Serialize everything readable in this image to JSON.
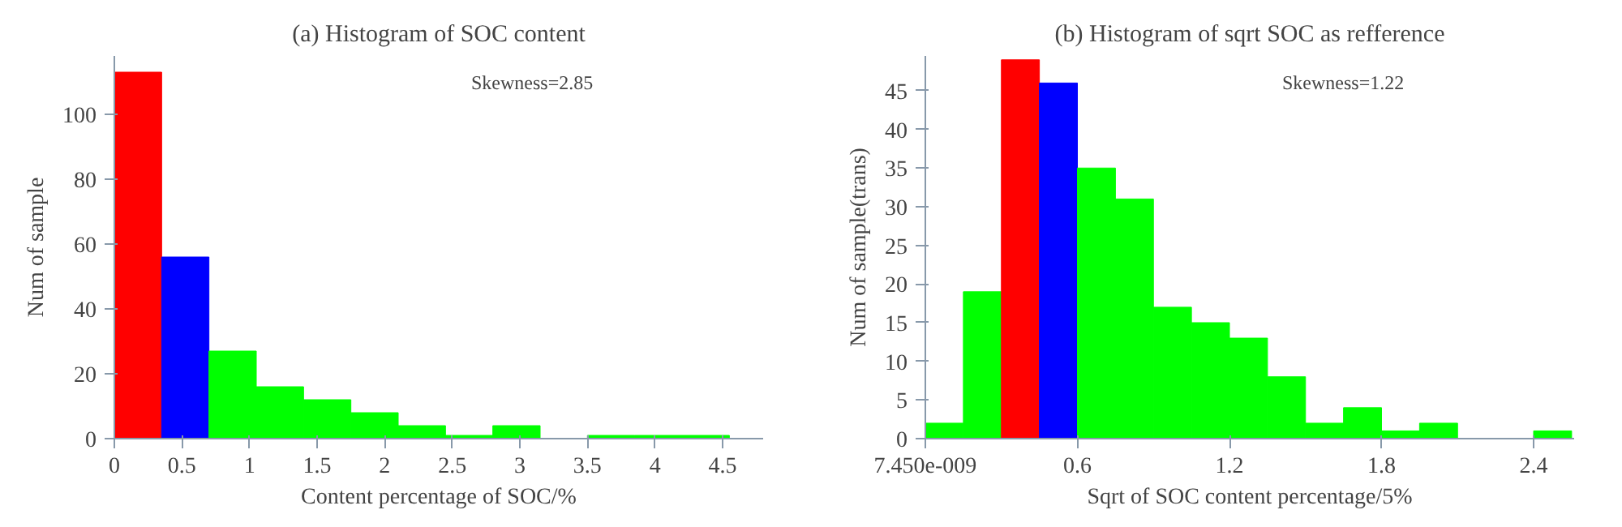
{
  "chart_data": [
    {
      "type": "histogram",
      "title": "(a) Histogram of SOC content",
      "xlabel": "Content percentage of SOC/%",
      "ylabel": "Num of sample",
      "annotations": [
        "Skewness=2.85"
      ],
      "bins": [
        0,
        0.35,
        0.7,
        1.05,
        1.4,
        1.75,
        2.1,
        2.45,
        2.8,
        3.15,
        3.5,
        3.85,
        4.2,
        4.55
      ],
      "values": [
        113,
        56,
        27,
        16,
        12,
        8,
        4,
        1,
        4,
        0,
        1,
        1,
        1
      ],
      "colors": [
        "#ff0000",
        "#0000ff",
        "#00ff00",
        "#00ff00",
        "#00ff00",
        "#00ff00",
        "#00ff00",
        "#00ff00",
        "#00ff00",
        "#00ff00",
        "#00ff00",
        "#00ff00",
        "#00ff00"
      ],
      "xlim": [
        0,
        4.8
      ],
      "ylim": [
        0,
        118
      ],
      "xticks": [
        0,
        0.5,
        1,
        1.5,
        2,
        2.5,
        3,
        3.5,
        4,
        4.5
      ],
      "yticks": [
        0,
        20,
        40,
        60,
        80,
        100
      ],
      "grid": false
    },
    {
      "type": "histogram",
      "title": "(b) Histogram of sqrt SOC as refference",
      "xlabel": "Sqrt of SOC content percentage/5%",
      "ylabel": "Num of sample(trans)",
      "annotations": [
        "Skewness=1.22"
      ],
      "bins": [
        0,
        0.15,
        0.3,
        0.45,
        0.6,
        0.75,
        0.9,
        1.05,
        1.2,
        1.35,
        1.5,
        1.65,
        1.8,
        1.95,
        2.1,
        2.25,
        2.4,
        2.55
      ],
      "values": [
        2,
        19,
        49,
        46,
        35,
        31,
        17,
        15,
        13,
        8,
        2,
        4,
        1,
        2,
        0,
        0,
        1
      ],
      "colors": [
        "#00ff00",
        "#00ff00",
        "#ff0000",
        "#0000ff",
        "#00ff00",
        "#00ff00",
        "#00ff00",
        "#00ff00",
        "#00ff00",
        "#00ff00",
        "#00ff00",
        "#00ff00",
        "#00ff00",
        "#00ff00",
        "#00ff00",
        "#00ff00",
        "#00ff00"
      ],
      "xlim": [
        0,
        2.56
      ],
      "ylim": [
        0,
        49.5
      ],
      "xticks": [
        {
          "value": 7.45e-09,
          "label": "7.450e-009"
        },
        0.6,
        1.2,
        1.8,
        2.4
      ],
      "yticks": [
        0,
        5,
        10,
        15,
        20,
        25,
        30,
        35,
        40,
        45
      ],
      "grid": false
    }
  ]
}
